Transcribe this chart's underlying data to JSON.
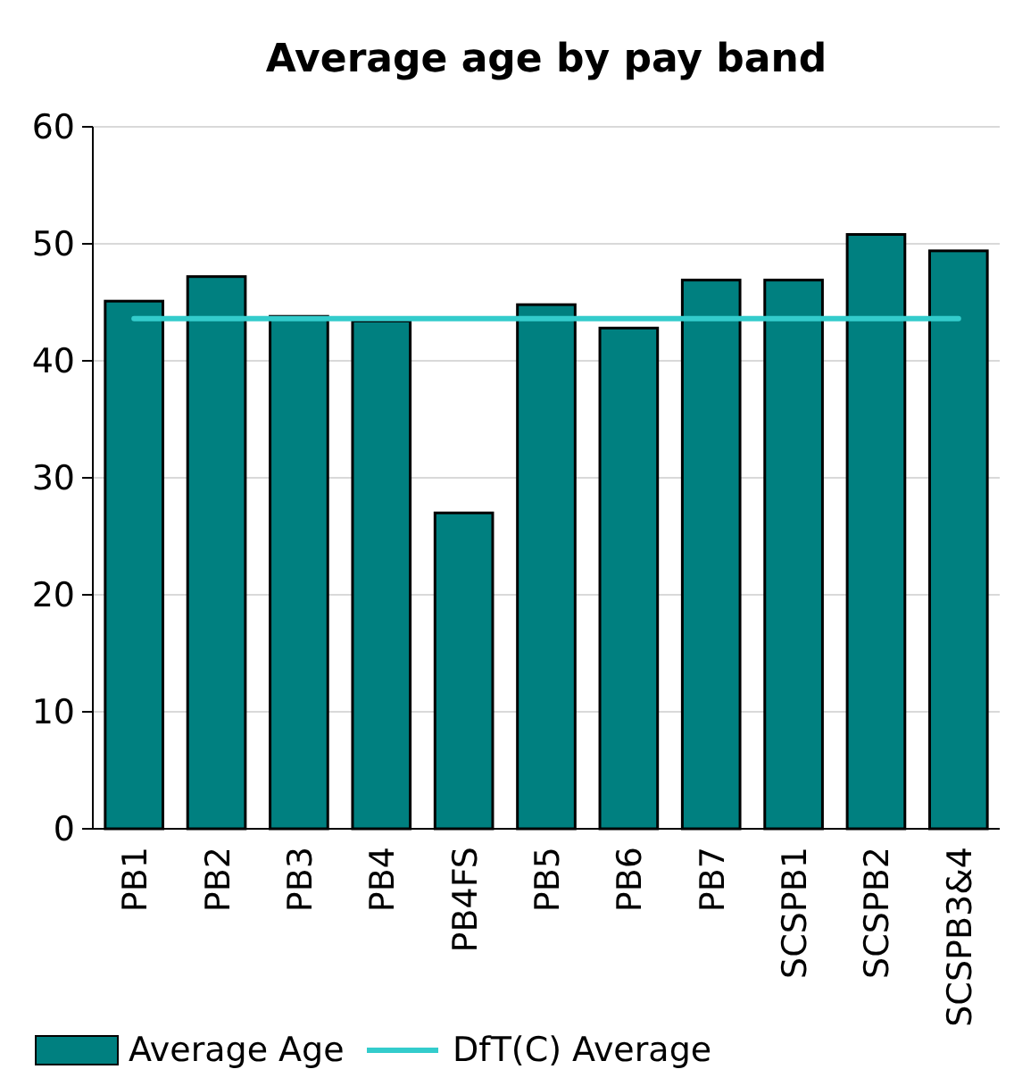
{
  "chart_data": {
    "type": "bar",
    "title": "Average age by pay band",
    "categories": [
      "PB1",
      "PB2",
      "PB3",
      "PB4",
      "PB4FS",
      "PB5",
      "PB6",
      "PB7",
      "SCSPB1",
      "SCSPB2",
      "SCSPB3&4"
    ],
    "series": [
      {
        "name": "Average Age",
        "color": "#008080",
        "values": [
          45.1,
          47.2,
          43.8,
          43.4,
          27,
          44.8,
          42.8,
          46.9,
          46.9,
          50.8,
          49.4
        ]
      }
    ],
    "ref_lines": [
      {
        "axis": "y",
        "value": 43.6,
        "label": "DfT(C) Average",
        "color": "#33cccc"
      }
    ],
    "ylim": [
      0,
      60
    ],
    "yticks": [
      0,
      10,
      20,
      30,
      40,
      50,
      60
    ],
    "grid": "y",
    "legend": "bottom left"
  }
}
